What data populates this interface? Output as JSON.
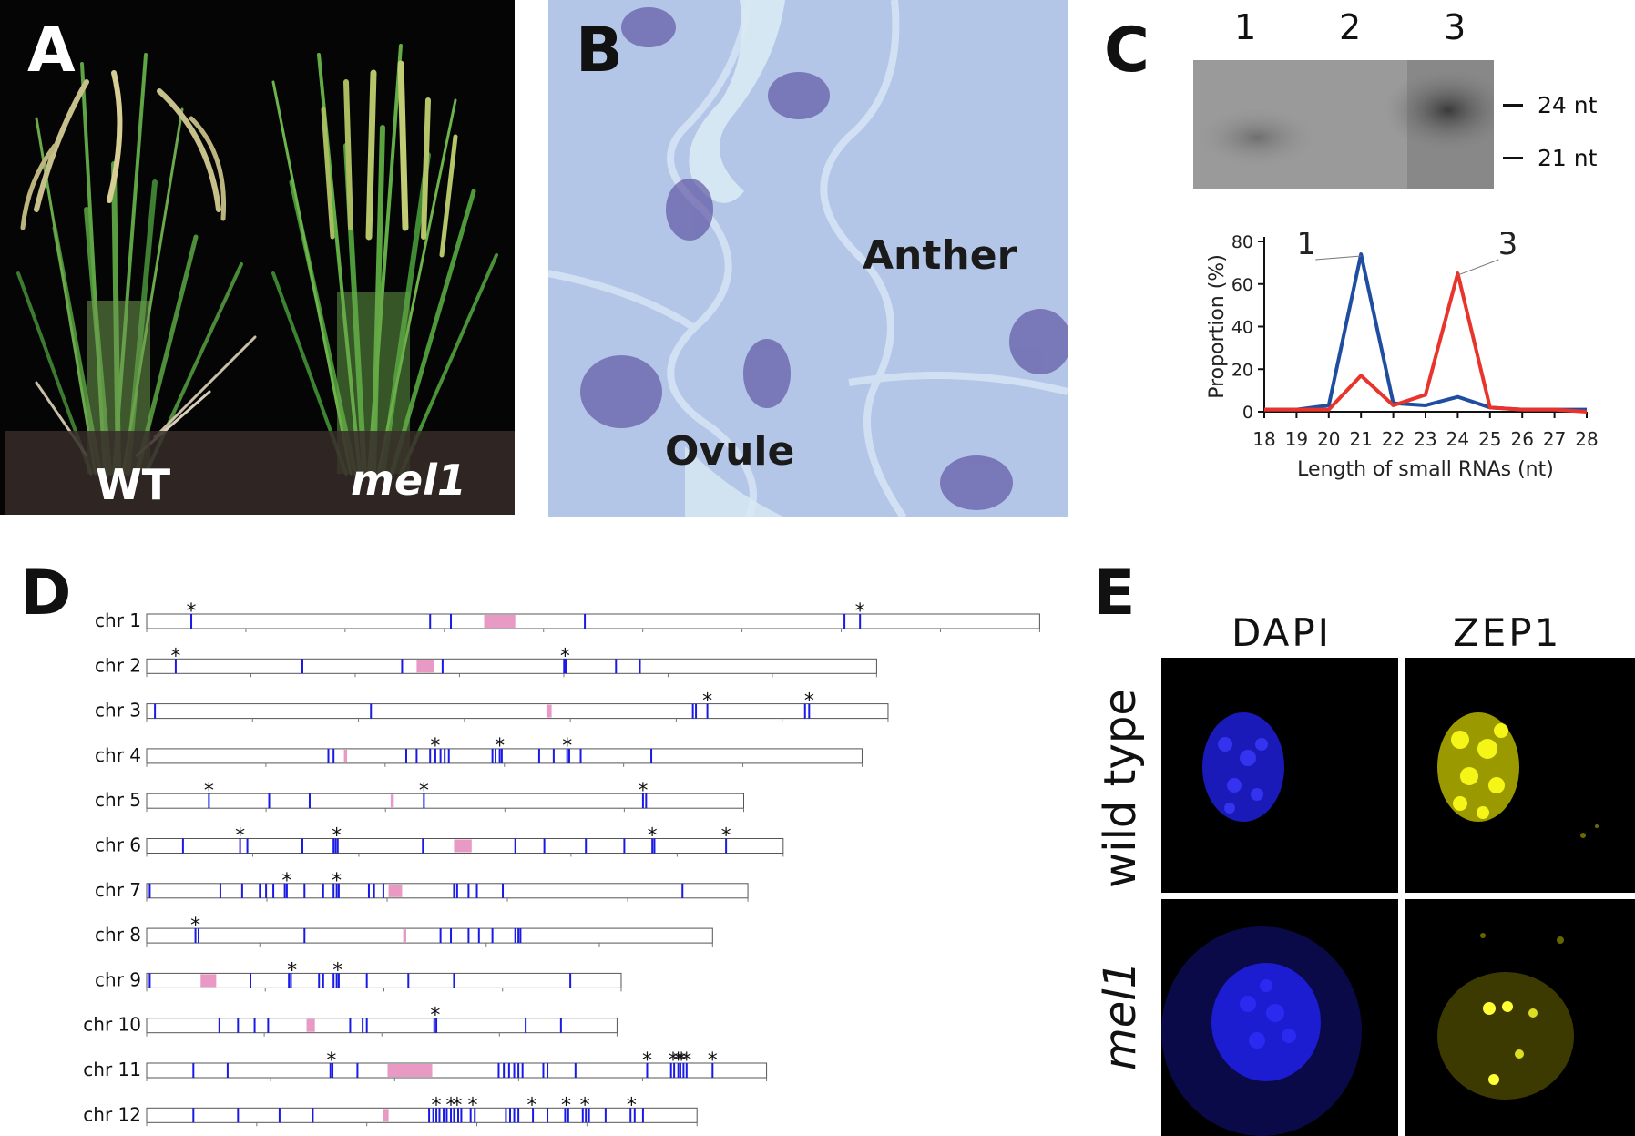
{
  "panel_a": {
    "letter": "A",
    "label_wt": "WT",
    "label_mutant": "mel1"
  },
  "panel_b": {
    "letter": "B",
    "label_anther": "Anther",
    "label_ovule": "Ovule"
  },
  "panel_c": {
    "letter": "C",
    "gel_lanes": [
      "1",
      "2",
      "3"
    ],
    "markers": [
      "24 nt",
      "21 nt"
    ],
    "chart_data": {
      "type": "line",
      "xlabel": "Length of small RNAs (nt)",
      "ylabel": "Proportion (%)",
      "x": [
        18,
        19,
        20,
        21,
        22,
        23,
        24,
        25,
        26,
        27,
        28
      ],
      "ylim": [
        0,
        80
      ],
      "yticks": [
        0,
        20,
        40,
        60,
        80
      ],
      "series": [
        {
          "name": "1",
          "color": "#1f4ea0",
          "values": [
            1,
            1,
            3,
            74,
            4,
            3,
            7,
            2,
            1,
            1,
            1
          ]
        },
        {
          "name": "3",
          "color": "#e8342a",
          "values": [
            1,
            1,
            1,
            17,
            3,
            8,
            65,
            2,
            1,
            1,
            0
          ]
        }
      ]
    }
  },
  "panel_d": {
    "letter": "D",
    "chromosomes": [
      {
        "label": "chr 1",
        "length": 860,
        "centromere": [
          325,
          355
        ],
        "blue": [
          43,
          273,
          293,
          422,
          672,
          687
        ],
        "stars": [
          43,
          687
        ],
        "ticks": 9
      },
      {
        "label": "chr 2",
        "length": 703,
        "centromere": [
          260,
          277
        ],
        "blue": [
          28,
          150,
          246,
          285,
          402,
          403,
          404,
          452,
          475
        ],
        "stars": [
          28,
          403
        ],
        "ticks": 7
      },
      {
        "label": "chr 3",
        "length": 714,
        "centromere": [
          385,
          390
        ],
        "blue": [
          8,
          216,
          526,
          529,
          540,
          634,
          638
        ],
        "stars": [
          540,
          638
        ],
        "ticks": 7
      },
      {
        "label": "chr 4",
        "length": 689,
        "centromere": [
          190,
          193
        ],
        "blue": [
          175,
          180,
          250,
          260,
          273,
          278,
          283,
          287,
          291,
          333,
          336,
          340,
          342,
          378,
          392,
          405,
          407,
          418,
          486
        ],
        "stars": [
          278,
          340,
          405
        ],
        "ticks": 6
      },
      {
        "label": "chr 5",
        "length": 575,
        "centromere": [
          235,
          238
        ],
        "blue": [
          60,
          118,
          157,
          267,
          478,
          481
        ],
        "stars": [
          60,
          267,
          478
        ],
        "ticks": 5
      },
      {
        "label": "chr 6",
        "length": 613,
        "centromere": [
          296,
          313
        ],
        "blue": [
          35,
          90,
          97,
          150,
          180,
          182,
          184,
          266,
          355,
          383,
          423,
          460,
          487,
          489,
          558
        ],
        "stars": [
          90,
          183,
          487,
          558
        ],
        "ticks": 6
      },
      {
        "label": "chr 7",
        "length": 579,
        "centromere": [
          233,
          246
        ],
        "blue": [
          3,
          71,
          92,
          109,
          115,
          122,
          133,
          135,
          152,
          170,
          180,
          183,
          185,
          214,
          219,
          228,
          296,
          299,
          310,
          318,
          343,
          516
        ],
        "stars": [
          135,
          183
        ],
        "ticks": 5
      },
      {
        "label": "chr 8",
        "length": 545,
        "centromere": [
          247,
          250
        ],
        "blue": [
          47,
          50,
          152,
          283,
          293,
          310,
          320,
          333,
          355,
          358,
          360
        ],
        "stars": [
          47
        ],
        "ticks": 5
      },
      {
        "label": "chr 9",
        "length": 457,
        "centromere": [
          52,
          67
        ],
        "blue": [
          3,
          100,
          137,
          139,
          166,
          170,
          180,
          183,
          185,
          212,
          252,
          296,
          408
        ],
        "stars": [
          140,
          184
        ],
        "ticks": 4
      },
      {
        "label": "chr 10",
        "length": 453,
        "centromere": [
          154,
          162
        ],
        "blue": [
          70,
          88,
          104,
          117,
          196,
          208,
          212,
          277,
          279,
          365,
          399
        ],
        "stars": [
          278
        ],
        "ticks": 4
      },
      {
        "label": "chr 11",
        "length": 597,
        "centromere": [
          232,
          275
        ],
        "blue": [
          45,
          78,
          177,
          179,
          203,
          339,
          344,
          349,
          354,
          358,
          362,
          382,
          386,
          413,
          482,
          505,
          508,
          512,
          514,
          517,
          520,
          545
        ],
        "stars": [
          178,
          482,
          507,
          512,
          515,
          520,
          545
        ],
        "ticks": 5
      },
      {
        "label": "chr 12",
        "length": 530,
        "centromere": [
          228,
          233
        ],
        "blue": [
          45,
          88,
          128,
          160,
          272,
          276,
          279,
          282,
          286,
          289,
          293,
          296,
          300,
          303,
          312,
          316,
          346,
          350,
          354,
          358,
          372,
          386,
          403,
          406,
          420,
          423,
          426,
          442,
          466,
          470,
          478
        ],
        "stars": [
          279,
          293,
          299,
          314,
          371,
          404,
          422,
          467
        ],
        "ticks": 5
      }
    ]
  },
  "panel_e": {
    "letter": "E",
    "col_labels": [
      "DAPI",
      "ZEP1"
    ],
    "row_labels": [
      "wild type",
      "mel1"
    ]
  },
  "colors": {
    "blue_line": "#1f4ea0",
    "red_line": "#e8342a",
    "marker_blue": "#1a1ae6",
    "centromere_pink": "#e89ac4"
  }
}
